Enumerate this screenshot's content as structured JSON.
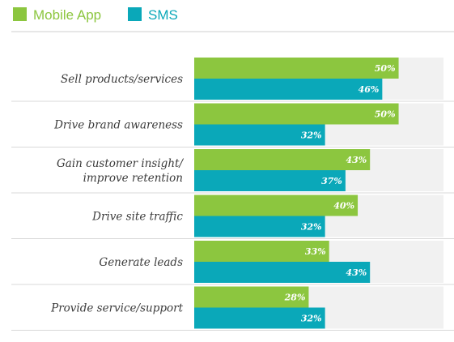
{
  "chart_data": {
    "type": "bar",
    "orientation": "horizontal",
    "categories": [
      "Sell products/services",
      "Drive brand awareness",
      "Gain customer insight/\nimprove retention",
      "Drive site traffic",
      "Generate leads",
      "Provide service/support"
    ],
    "series": [
      {
        "name": "Mobile App",
        "color": "#8cc63f",
        "values": [
          50,
          50,
          43,
          40,
          33,
          28
        ],
        "labels": [
          "50%",
          "50%",
          "43%",
          "40%",
          "33%",
          "28%"
        ]
      },
      {
        "name": "SMS",
        "color": "#0aa8b9",
        "values": [
          46,
          32,
          37,
          32,
          43,
          32
        ],
        "labels": [
          "46%",
          "32%",
          "37%",
          "32%",
          "43%",
          "32%"
        ]
      }
    ],
    "xlim": [
      0,
      100
    ],
    "legend_position": "top-left",
    "grid": false,
    "track_color": "#f1f1f1"
  }
}
